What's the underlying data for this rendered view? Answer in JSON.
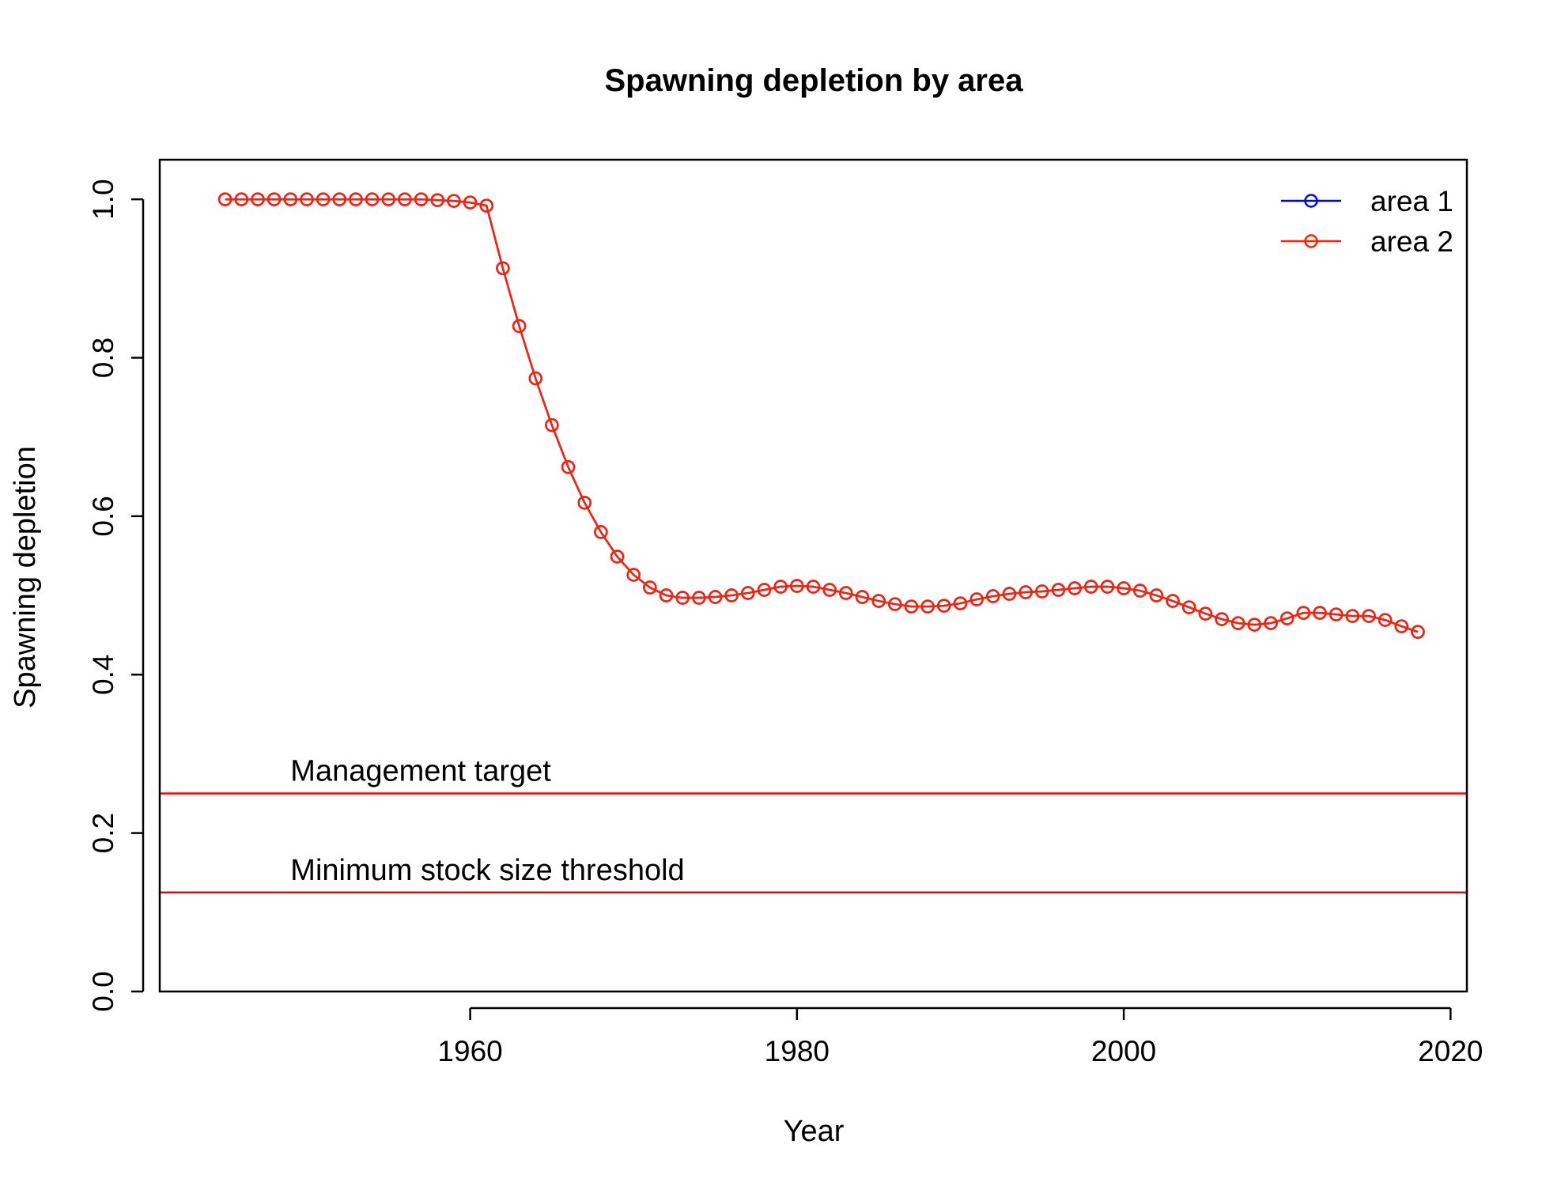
{
  "chart_data": {
    "type": "line",
    "title": "Spawning depletion by area",
    "xlabel": "Year",
    "ylabel": "Spawning depletion",
    "xlim": [
      1941,
      2021
    ],
    "ylim": [
      0.0,
      1.05
    ],
    "xticks": [
      1960,
      1980,
      2000,
      2020
    ],
    "yticks": [
      0.0,
      0.2,
      0.4,
      0.6,
      0.8,
      1.0
    ],
    "ytick_labels": [
      "0.0",
      "0.2",
      "0.4",
      "0.6",
      "0.8",
      "1.0"
    ],
    "legend_position": "top-right",
    "x": [
      1945,
      1946,
      1947,
      1948,
      1949,
      1950,
      1951,
      1952,
      1953,
      1954,
      1955,
      1956,
      1957,
      1958,
      1959,
      1960,
      1961,
      1962,
      1963,
      1964,
      1965,
      1966,
      1967,
      1968,
      1969,
      1970,
      1971,
      1972,
      1973,
      1974,
      1975,
      1976,
      1977,
      1978,
      1979,
      1980,
      1981,
      1982,
      1983,
      1984,
      1985,
      1986,
      1987,
      1988,
      1989,
      1990,
      1991,
      1992,
      1993,
      1994,
      1995,
      1996,
      1997,
      1998,
      1999,
      2000,
      2001,
      2002,
      2003,
      2004,
      2005,
      2006,
      2007,
      2008,
      2009,
      2010,
      2011,
      2012,
      2013,
      2014,
      2015,
      2016,
      2017,
      2018
    ],
    "series": [
      {
        "name": "area 1",
        "color": "#0000ff",
        "values": [
          1.0,
          1.0,
          1.0,
          1.0,
          1.0,
          1.0,
          1.0,
          1.0,
          1.0,
          1.0,
          1.0,
          1.0,
          1.0,
          0.999,
          0.998,
          0.996,
          0.992,
          0.913,
          0.84,
          0.774,
          0.715,
          0.662,
          0.617,
          0.58,
          0.549,
          0.526,
          0.51,
          0.5,
          0.497,
          0.497,
          0.498,
          0.5,
          0.503,
          0.507,
          0.511,
          0.512,
          0.511,
          0.507,
          0.503,
          0.498,
          0.493,
          0.489,
          0.486,
          0.486,
          0.487,
          0.49,
          0.495,
          0.499,
          0.502,
          0.504,
          0.505,
          0.507,
          0.509,
          0.511,
          0.511,
          0.509,
          0.506,
          0.5,
          0.493,
          0.485,
          0.477,
          0.47,
          0.465,
          0.463,
          0.465,
          0.471,
          0.478,
          0.478,
          0.476,
          0.474,
          0.474,
          0.469,
          0.461,
          0.454
        ]
      },
      {
        "name": "area 2",
        "color": "#ff2000",
        "values": [
          1.0,
          1.0,
          1.0,
          1.0,
          1.0,
          1.0,
          1.0,
          1.0,
          1.0,
          1.0,
          1.0,
          1.0,
          1.0,
          0.999,
          0.998,
          0.996,
          0.992,
          0.913,
          0.84,
          0.774,
          0.715,
          0.662,
          0.617,
          0.58,
          0.549,
          0.526,
          0.51,
          0.5,
          0.497,
          0.497,
          0.498,
          0.5,
          0.503,
          0.507,
          0.511,
          0.512,
          0.511,
          0.507,
          0.503,
          0.498,
          0.493,
          0.489,
          0.486,
          0.486,
          0.487,
          0.49,
          0.495,
          0.499,
          0.502,
          0.504,
          0.505,
          0.507,
          0.509,
          0.511,
          0.511,
          0.509,
          0.506,
          0.5,
          0.493,
          0.485,
          0.477,
          0.47,
          0.465,
          0.463,
          0.465,
          0.471,
          0.478,
          0.478,
          0.476,
          0.474,
          0.474,
          0.469,
          0.461,
          0.454
        ]
      }
    ],
    "reference_lines": [
      {
        "y": 0.25,
        "label": "Management target",
        "label_x": 1949,
        "color": "#ff0000"
      },
      {
        "y": 0.125,
        "label": "Minimum stock size threshold",
        "label_x": 1949,
        "color": "#ff0000"
      }
    ]
  }
}
